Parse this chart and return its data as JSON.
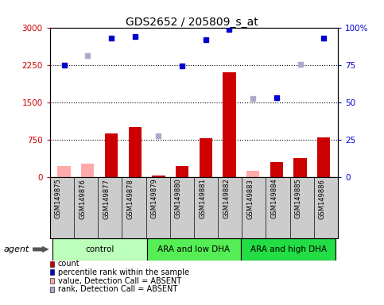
{
  "title": "GDS2652 / 205809_s_at",
  "samples": [
    "GSM149875",
    "GSM149876",
    "GSM149877",
    "GSM149878",
    "GSM149879",
    "GSM149880",
    "GSM149881",
    "GSM149882",
    "GSM149883",
    "GSM149884",
    "GSM149885",
    "GSM149886"
  ],
  "groups": [
    {
      "label": "control",
      "start": 0,
      "end": 3,
      "color": "#bbffbb"
    },
    {
      "label": "ARA and low DHA",
      "start": 4,
      "end": 7,
      "color": "#55ee55"
    },
    {
      "label": "ARA and high DHA",
      "start": 8,
      "end": 11,
      "color": "#22dd44"
    }
  ],
  "count_values": [
    null,
    null,
    870,
    1000,
    30,
    220,
    770,
    2100,
    null,
    300,
    380,
    800
  ],
  "count_absent": [
    220,
    270,
    null,
    null,
    null,
    null,
    null,
    null,
    130,
    null,
    null,
    null
  ],
  "rank_values": [
    2250,
    null,
    2780,
    2820,
    null,
    2230,
    2750,
    2960,
    null,
    1590,
    null,
    2780
  ],
  "rank_absent": [
    null,
    2430,
    null,
    null,
    830,
    null,
    null,
    null,
    1570,
    null,
    2260,
    null
  ],
  "yticks_left": [
    0,
    750,
    1500,
    2250,
    3000
  ],
  "yticks_right": [
    0,
    25,
    50,
    75,
    100
  ],
  "ylim_left": [
    0,
    3000
  ],
  "ylim_right": [
    0,
    100
  ],
  "dotted_lines": [
    750,
    1500,
    2250
  ],
  "legend": [
    {
      "color": "#cc0000",
      "label": "count",
      "marker": "square"
    },
    {
      "color": "#0000cc",
      "label": "percentile rank within the sample",
      "marker": "square"
    },
    {
      "color": "#ffaaaa",
      "label": "value, Detection Call = ABSENT",
      "marker": "square"
    },
    {
      "color": "#aaaacc",
      "label": "rank, Detection Call = ABSENT",
      "marker": "square"
    }
  ],
  "bar_color": "#cc0000",
  "bar_absent_color": "#ffaaaa",
  "dot_color": "#0000cc",
  "dot_absent_color": "#aaaacc",
  "left_tick_color": "#cc0000",
  "right_tick_color": "#0000cc",
  "sample_bg_color": "#cccccc",
  "plot_bg": "#ffffff"
}
